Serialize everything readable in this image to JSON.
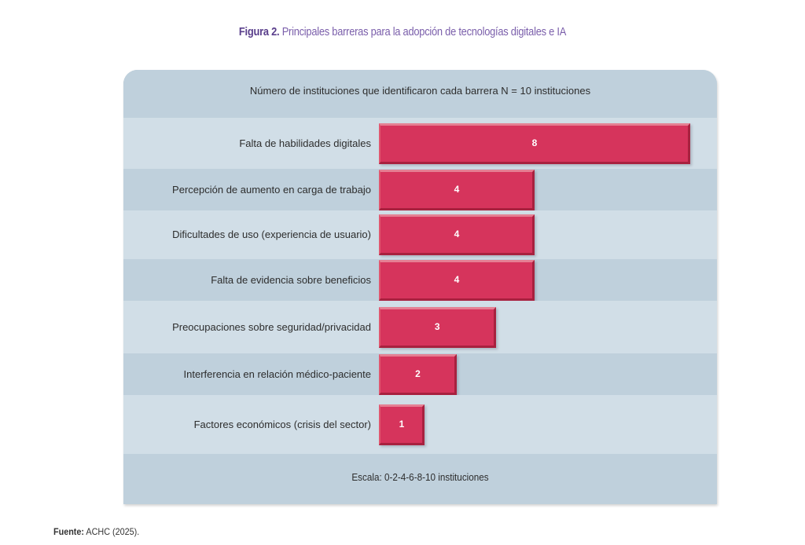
{
  "figure": {
    "number_label": "Figura 2.",
    "title": "Principales barreras para la adopción de tecnologías digitales e IA"
  },
  "source": {
    "label": "Fuente:",
    "text": "ACHC (2025)."
  },
  "chart_data": {
    "type": "bar",
    "orientation": "horizontal",
    "title": "Principales barreras para la adopción de tecnologías digitales e IA",
    "header": "Número de instituciones que identificaron cada barrera N = 10 instituciones",
    "footer": "Escala: 0-2-4-6-8-10 instituciones",
    "xlabel": "Número de instituciones",
    "ylabel": "",
    "xlim": [
      0,
      10
    ],
    "grid": false,
    "legend": "none",
    "bar_color": "#d6345c",
    "band_colors": [
      "#d1dee7",
      "#bfd0dc"
    ],
    "categories": [
      "Falta de habilidades digitales",
      "Percepción de aumento en carga de trabajo",
      "Dificultades de uso (experiencia de usuario)",
      "Falta de evidencia sobre beneficios",
      "Preocupaciones sobre seguridad/privacidad",
      "Interferencia en relación médico-paciente",
      "Factores económicos (crisis del sector)"
    ],
    "values": [
      8,
      4,
      4,
      4,
      3,
      2,
      1
    ],
    "data_labels": [
      "8",
      "4",
      "4",
      "4",
      "3",
      "2",
      "1"
    ]
  }
}
